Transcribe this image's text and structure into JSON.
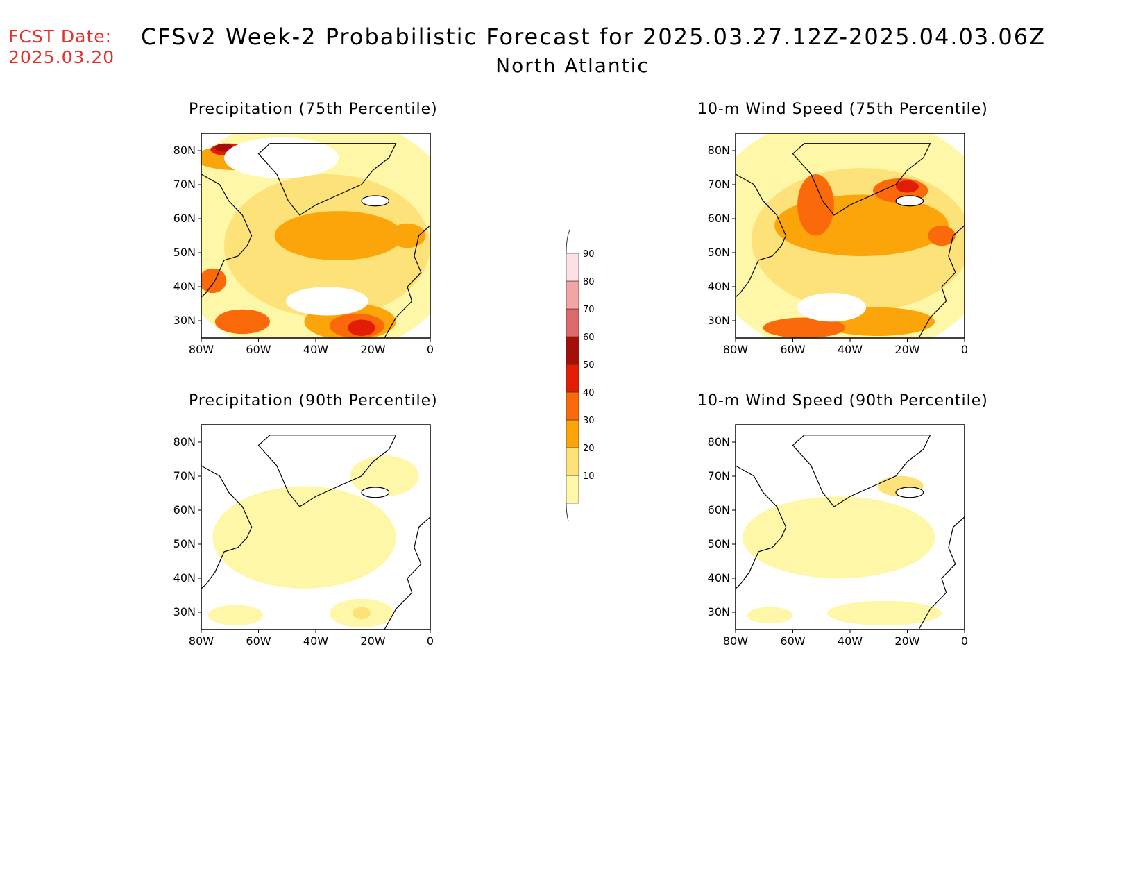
{
  "header": {
    "fcst_label": "FCST Date:",
    "fcst_date": "2025.03.20",
    "title": "CFSv2 Week-2 Probabilistic Forecast for 2025.03.27.12Z-2025.04.03.06Z",
    "subtitle": "North Atlantic"
  },
  "axes": {
    "lat_ticks": [
      "80N",
      "70N",
      "60N",
      "50N",
      "40N",
      "30N"
    ],
    "lon_ticks": [
      "80W",
      "60W",
      "40W",
      "20W",
      "0"
    ]
  },
  "panels": [
    {
      "title": "Precipitation (75th Percentile)",
      "intensity": "high"
    },
    {
      "title": "10-m Wind Speed (75th Percentile)",
      "intensity": "high"
    },
    {
      "title": "Precipitation (90th Percentile)",
      "intensity": "low"
    },
    {
      "title": "10-m Wind Speed (90th Percentile)",
      "intensity": "low"
    }
  ],
  "colorbar": {
    "levels": [
      "10",
      "20",
      "30",
      "40",
      "50",
      "60",
      "70",
      "80",
      "90"
    ],
    "colors": [
      "#fff7a8",
      "#fde27a",
      "#fca50a",
      "#fb6a0a",
      "#e21c05",
      "#a50f0a",
      "#dd6a6a",
      "#f3a4a4",
      "#fde0e6"
    ]
  }
}
